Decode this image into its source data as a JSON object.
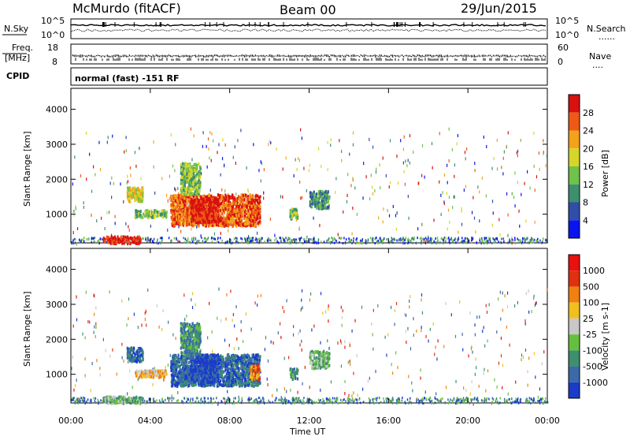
{
  "header": {
    "station": "McMurdo (fitACF)",
    "beam": "Beam 00",
    "date": "29/Jun/2015"
  },
  "status_panel": {
    "nsky_label": "N.Sky",
    "nsky_ticks": [
      "10^5",
      "10^0"
    ],
    "nsearch_label": "N.Search",
    "nsearch_ticks": [
      "10^5",
      "10^0"
    ],
    "freq_label_1": "Freq.",
    "freq_label_2": "[MHz]",
    "freq_ticks": [
      "18",
      "8"
    ],
    "nave_label": "Nave",
    "nave_ticks": [
      "60",
      "0"
    ],
    "cpid_label": "CPID",
    "cpid_value": "normal (fast) -151 RF",
    "legend_dots": "......",
    "legend_dots2": "...."
  },
  "chart_data": [
    {
      "type": "heatmap",
      "title": "",
      "xlabel": "Time UT",
      "ylabel": "Slant Range [km]",
      "x_ticks": [
        "00:00",
        "04:00",
        "08:00",
        "12:00",
        "16:00",
        "20:00",
        "00:00"
      ],
      "y_ticks": [
        "1000",
        "2000",
        "3000",
        "4000"
      ],
      "xlim_hours": [
        0,
        24
      ],
      "ylim_km": [
        180,
        4600
      ],
      "colorbar": {
        "label": "Power [dB]",
        "ticks": [
          "4",
          "8",
          "12",
          "16",
          "20",
          "24",
          "28"
        ],
        "colors": [
          "#0a14f0",
          "#2f4ea8",
          "#3e8f6e",
          "#6fc24a",
          "#d6d62a",
          "#f4a21c",
          "#ee5a16",
          "#d81010"
        ],
        "range": [
          0,
          32
        ]
      },
      "blobs": [
        {
          "t": [
            5.0,
            9.5
          ],
          "r": [
            700,
            1600
          ],
          "level": 6
        },
        {
          "t": [
            6.0,
            7.4
          ],
          "r": [
            800,
            1500
          ],
          "level": 7
        },
        {
          "t": [
            2.8,
            3.6
          ],
          "r": [
            1400,
            1800
          ],
          "level": 4
        },
        {
          "t": [
            3.2,
            4.8
          ],
          "r": [
            950,
            1150
          ],
          "level": 3
        },
        {
          "t": [
            9.0,
            9.5
          ],
          "r": [
            900,
            1300
          ],
          "level": 6
        },
        {
          "t": [
            11.0,
            11.4
          ],
          "r": [
            900,
            1200
          ],
          "level": 3
        },
        {
          "t": [
            12.0,
            13.0
          ],
          "r": [
            1200,
            1700
          ],
          "level": 2
        },
        {
          "t": [
            5.5,
            6.5
          ],
          "r": [
            1600,
            2500
          ],
          "level": 3
        },
        {
          "t": [
            1.6,
            3.5
          ],
          "r": [
            200,
            400
          ],
          "level": 7
        }
      ]
    },
    {
      "type": "heatmap",
      "title": "",
      "xlabel": "Time UT",
      "ylabel": "Slant Range [km]",
      "x_ticks": [
        "00:00",
        "04:00",
        "08:00",
        "12:00",
        "16:00",
        "20:00",
        "00:00"
      ],
      "y_ticks": [
        "1000",
        "2000",
        "3000",
        "4000"
      ],
      "xlim_hours": [
        0,
        24
      ],
      "ylim_km": [
        180,
        4600
      ],
      "colorbar": {
        "label": "Velocity [m s-1]",
        "ticks": [
          "1000",
          "500",
          "100",
          "25",
          "-25",
          "-100",
          "-500",
          "-1000"
        ],
        "colors": [
          "#1a3cc8",
          "#3a6aa8",
          "#3e8f6e",
          "#66c040",
          "#c8c8c8",
          "#f0c020",
          "#f08010",
          "#e03010",
          "#e81010"
        ],
        "range": [
          -1000,
          1000
        ]
      },
      "blobs": [
        {
          "t": [
            5.0,
            9.5
          ],
          "r": [
            700,
            1600
          ],
          "level": 1
        },
        {
          "t": [
            6.0,
            7.4
          ],
          "r": [
            800,
            1600
          ],
          "level": 0
        },
        {
          "t": [
            2.8,
            3.6
          ],
          "r": [
            1400,
            1800
          ],
          "level": 1
        },
        {
          "t": [
            3.2,
            4.8
          ],
          "r": [
            950,
            1150
          ],
          "level": 5
        },
        {
          "t": [
            9.0,
            9.5
          ],
          "r": [
            900,
            1300
          ],
          "level": 6
        },
        {
          "t": [
            11.0,
            11.4
          ],
          "r": [
            900,
            1200
          ],
          "level": 2
        },
        {
          "t": [
            12.0,
            13.0
          ],
          "r": [
            1200,
            1700
          ],
          "level": 3
        },
        {
          "t": [
            5.5,
            6.5
          ],
          "r": [
            1600,
            2500
          ],
          "level": 2
        },
        {
          "t": [
            1.6,
            3.5
          ],
          "r": [
            200,
            400
          ],
          "level": 3
        }
      ]
    }
  ]
}
